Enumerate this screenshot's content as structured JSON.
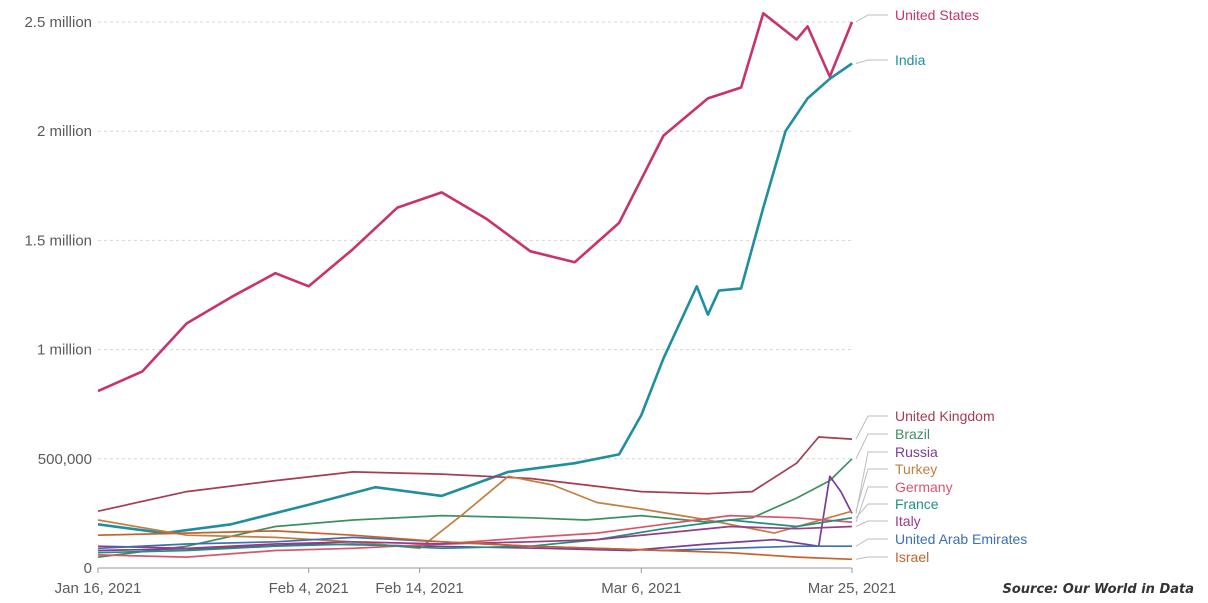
{
  "source": "Source: Our World in Data",
  "chart_data": {
    "type": "line",
    "title": "",
    "xlabel": "",
    "ylabel": "",
    "ylim": [
      0,
      2500000
    ],
    "xlim": [
      "2021-01-16",
      "2021-03-25"
    ],
    "grid": true,
    "legend_placement": "right, at line ends",
    "y_ticks": [
      0,
      500000,
      1000000,
      1500000,
      2000000,
      2500000
    ],
    "y_tick_labels": [
      "0",
      "500,000",
      "1 million",
      "1.5 million",
      "2 million",
      "2.5 million"
    ],
    "x_ticks": [
      "2021-01-16",
      "2021-02-04",
      "2021-02-14",
      "2021-03-06",
      "2021-03-25"
    ],
    "x_tick_labels": [
      "Jan 16, 2021",
      "Feb 4, 2021",
      "Feb 14, 2021",
      "Mar 6, 2021",
      "Mar 25, 2021"
    ],
    "series": [
      {
        "name": "United States",
        "color": "#c8336e",
        "x": [
          "2021-01-16",
          "2021-01-20",
          "2021-01-24",
          "2021-01-28",
          "2021-02-01",
          "2021-02-04",
          "2021-02-08",
          "2021-02-12",
          "2021-02-16",
          "2021-02-20",
          "2021-02-24",
          "2021-02-28",
          "2021-03-04",
          "2021-03-08",
          "2021-03-12",
          "2021-03-15",
          "2021-03-17",
          "2021-03-20",
          "2021-03-21",
          "2021-03-23",
          "2021-03-25"
        ],
        "values": [
          810000,
          900000,
          1120000,
          1240000,
          1350000,
          1290000,
          1460000,
          1650000,
          1720000,
          1600000,
          1450000,
          1400000,
          1580000,
          1980000,
          2150000,
          2200000,
          2540000,
          2420000,
          2480000,
          2250000,
          2500000
        ]
      },
      {
        "name": "India",
        "color": "#1f8fa0",
        "x": [
          "2021-01-16",
          "2021-01-22",
          "2021-01-28",
          "2021-02-04",
          "2021-02-10",
          "2021-02-16",
          "2021-02-22",
          "2021-02-28",
          "2021-03-04",
          "2021-03-06",
          "2021-03-08",
          "2021-03-10",
          "2021-03-11",
          "2021-03-12",
          "2021-03-13",
          "2021-03-15",
          "2021-03-17",
          "2021-03-19",
          "2021-03-21",
          "2021-03-23",
          "2021-03-25"
        ],
        "values": [
          200000,
          160000,
          200000,
          290000,
          370000,
          330000,
          440000,
          480000,
          520000,
          700000,
          960000,
          1180000,
          1290000,
          1160000,
          1270000,
          1280000,
          1650000,
          2000000,
          2150000,
          2240000,
          2310000
        ]
      },
      {
        "name": "United Kingdom",
        "color": "#a53c52",
        "x": [
          "2021-01-16",
          "2021-01-24",
          "2021-02-01",
          "2021-02-08",
          "2021-02-16",
          "2021-02-24",
          "2021-03-01",
          "2021-03-06",
          "2021-03-12",
          "2021-03-16",
          "2021-03-20",
          "2021-03-22",
          "2021-03-25"
        ],
        "values": [
          260000,
          350000,
          400000,
          440000,
          430000,
          410000,
          380000,
          350000,
          340000,
          350000,
          480000,
          600000,
          590000
        ]
      },
      {
        "name": "Brazil",
        "color": "#3f8f64",
        "x": [
          "2021-01-16",
          "2021-01-24",
          "2021-02-01",
          "2021-02-08",
          "2021-02-16",
          "2021-02-24",
          "2021-03-01",
          "2021-03-06",
          "2021-03-12",
          "2021-03-16",
          "2021-03-20",
          "2021-03-23",
          "2021-03-25"
        ],
        "values": [
          50000,
          100000,
          190000,
          220000,
          240000,
          230000,
          220000,
          240000,
          210000,
          230000,
          320000,
          400000,
          500000
        ]
      },
      {
        "name": "Russia",
        "color": "#7a3d9a",
        "x": [
          "2021-01-16",
          "2021-01-26",
          "2021-02-05",
          "2021-02-15",
          "2021-02-25",
          "2021-03-05",
          "2021-03-12",
          "2021-03-18",
          "2021-03-22",
          "2021-03-23",
          "2021-03-24",
          "2021-03-25"
        ],
        "values": [
          80000,
          90000,
          110000,
          100000,
          90000,
          80000,
          110000,
          130000,
          100000,
          420000,
          350000,
          250000
        ]
      },
      {
        "name": "Turkey",
        "color": "#c37f3f",
        "x": [
          "2021-01-16",
          "2021-01-24",
          "2021-02-01",
          "2021-02-08",
          "2021-02-14",
          "2021-02-18",
          "2021-02-22",
          "2021-02-26",
          "2021-03-02",
          "2021-03-06",
          "2021-03-12",
          "2021-03-18",
          "2021-03-25"
        ],
        "values": [
          220000,
          150000,
          140000,
          120000,
          90000,
          250000,
          420000,
          380000,
          300000,
          270000,
          220000,
          160000,
          260000
        ]
      },
      {
        "name": "Germany",
        "color": "#d9566a",
        "x": [
          "2021-01-16",
          "2021-01-24",
          "2021-02-01",
          "2021-02-08",
          "2021-02-16",
          "2021-02-24",
          "2021-03-02",
          "2021-03-08",
          "2021-03-14",
          "2021-03-20",
          "2021-03-25"
        ],
        "values": [
          60000,
          50000,
          80000,
          90000,
          110000,
          140000,
          160000,
          200000,
          240000,
          230000,
          210000
        ]
      },
      {
        "name": "France",
        "color": "#1e9080",
        "x": [
          "2021-01-16",
          "2021-01-24",
          "2021-02-01",
          "2021-02-08",
          "2021-02-16",
          "2021-02-24",
          "2021-03-02",
          "2021-03-08",
          "2021-03-14",
          "2021-03-20",
          "2021-03-25"
        ],
        "values": [
          70000,
          80000,
          100000,
          110000,
          90000,
          100000,
          130000,
          180000,
          220000,
          190000,
          230000
        ]
      },
      {
        "name": "Italy",
        "color": "#9b3a85",
        "x": [
          "2021-01-16",
          "2021-01-24",
          "2021-02-01",
          "2021-02-08",
          "2021-02-16",
          "2021-02-24",
          "2021-03-02",
          "2021-03-08",
          "2021-03-14",
          "2021-03-20",
          "2021-03-25"
        ],
        "values": [
          100000,
          90000,
          110000,
          120000,
          110000,
          120000,
          130000,
          160000,
          190000,
          180000,
          190000
        ]
      },
      {
        "name": "United Arab Emirates",
        "color": "#3b6fb6",
        "x": [
          "2021-01-16",
          "2021-01-24",
          "2021-02-01",
          "2021-02-08",
          "2021-02-16",
          "2021-02-24",
          "2021-03-02",
          "2021-03-08",
          "2021-03-14",
          "2021-03-20",
          "2021-03-25"
        ],
        "values": [
          90000,
          110000,
          120000,
          140000,
          120000,
          100000,
          90000,
          80000,
          90000,
          100000,
          100000
        ]
      },
      {
        "name": "Israel",
        "color": "#c9612b",
        "x": [
          "2021-01-16",
          "2021-01-24",
          "2021-02-01",
          "2021-02-08",
          "2021-02-16",
          "2021-02-24",
          "2021-03-02",
          "2021-03-08",
          "2021-03-14",
          "2021-03-20",
          "2021-03-25"
        ],
        "values": [
          150000,
          160000,
          170000,
          150000,
          120000,
          100000,
          90000,
          80000,
          70000,
          50000,
          40000
        ]
      }
    ]
  }
}
